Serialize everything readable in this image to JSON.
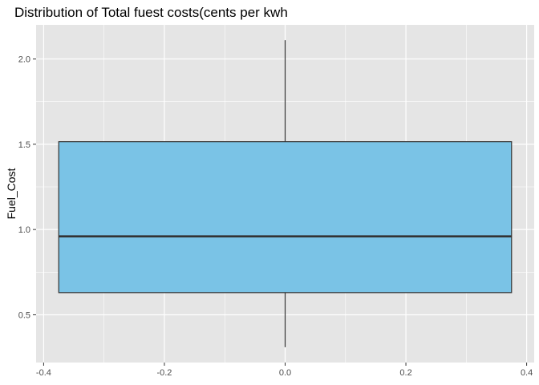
{
  "chart_data": {
    "type": "boxplot",
    "title": "Distribution of Total fuest costs(cents per kwh",
    "xlabel": "",
    "ylabel": "Fuel_Cost",
    "xlim": [
      -0.4125,
      0.4125
    ],
    "ylim": [
      0.22,
      2.2
    ],
    "x_ticks": [
      -0.4,
      -0.2,
      0.0,
      0.2,
      0.4
    ],
    "x_tick_labels": [
      "-0.4",
      "-0.2",
      "0.0",
      "0.2",
      "0.4"
    ],
    "y_ticks": [
      0.5,
      1.0,
      1.5,
      2.0
    ],
    "y_tick_labels": [
      "0.5",
      "1.0",
      "1.5",
      "2.0"
    ],
    "grid": true,
    "box": {
      "x_center": 0,
      "x_range": [
        -0.375,
        0.375
      ],
      "min": 0.31,
      "q1": 0.63,
      "median": 0.96,
      "q3": 1.515,
      "max": 2.11
    },
    "colors": {
      "panel_background": "#e5e5e5",
      "grid": "#ffffff",
      "box_fill": "#7ac3e6",
      "box_stroke": "#333333"
    }
  }
}
